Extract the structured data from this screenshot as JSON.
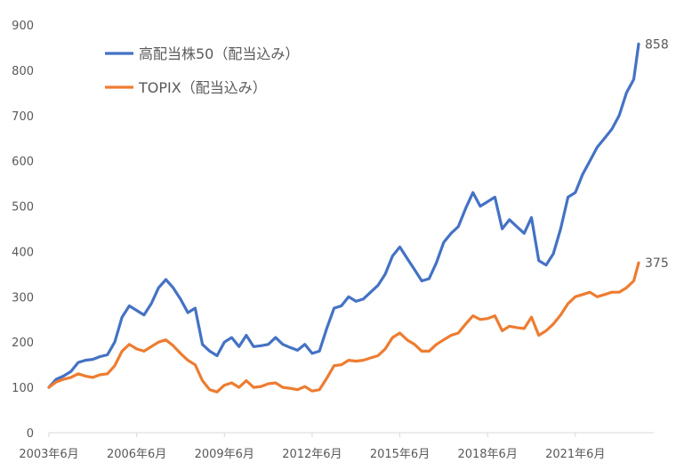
{
  "chart_data": {
    "type": "line",
    "ylim": [
      0,
      900
    ],
    "y_ticks": [
      "0",
      "100",
      "200",
      "300",
      "400",
      "500",
      "600",
      "700",
      "800",
      "900"
    ],
    "x_ticks": [
      "2003年6月",
      "2006年6月",
      "2009年6月",
      "2012年6月",
      "2015年6月",
      "2018年6月",
      "2021年6月"
    ],
    "x_range": [
      2003.417,
      2023.583
    ],
    "grid": false,
    "legend_position": "top-left",
    "series": [
      {
        "name": "高配当株50（配当込み）",
        "color": "#4472C4",
        "end_label": "858",
        "points": [
          [
            2003.417,
            100
          ],
          [
            2003.667,
            118
          ],
          [
            2003.917,
            125
          ],
          [
            2004.167,
            135
          ],
          [
            2004.417,
            155
          ],
          [
            2004.667,
            160
          ],
          [
            2004.917,
            162
          ],
          [
            2005.167,
            168
          ],
          [
            2005.417,
            172
          ],
          [
            2005.667,
            200
          ],
          [
            2005.917,
            255
          ],
          [
            2006.167,
            280
          ],
          [
            2006.417,
            270
          ],
          [
            2006.667,
            260
          ],
          [
            2006.917,
            285
          ],
          [
            2007.167,
            320
          ],
          [
            2007.417,
            338
          ],
          [
            2007.667,
            320
          ],
          [
            2007.917,
            295
          ],
          [
            2008.167,
            265
          ],
          [
            2008.417,
            275
          ],
          [
            2008.667,
            195
          ],
          [
            2008.917,
            180
          ],
          [
            2009.167,
            170
          ],
          [
            2009.417,
            200
          ],
          [
            2009.667,
            210
          ],
          [
            2009.917,
            190
          ],
          [
            2010.167,
            215
          ],
          [
            2010.417,
            190
          ],
          [
            2010.667,
            192
          ],
          [
            2010.917,
            195
          ],
          [
            2011.167,
            210
          ],
          [
            2011.417,
            195
          ],
          [
            2011.667,
            188
          ],
          [
            2011.917,
            182
          ],
          [
            2012.167,
            195
          ],
          [
            2012.417,
            175
          ],
          [
            2012.667,
            180
          ],
          [
            2012.917,
            230
          ],
          [
            2013.167,
            275
          ],
          [
            2013.417,
            280
          ],
          [
            2013.667,
            300
          ],
          [
            2013.917,
            290
          ],
          [
            2014.167,
            295
          ],
          [
            2014.417,
            310
          ],
          [
            2014.667,
            325
          ],
          [
            2014.917,
            350
          ],
          [
            2015.167,
            390
          ],
          [
            2015.417,
            410
          ],
          [
            2015.667,
            385
          ],
          [
            2015.917,
            360
          ],
          [
            2016.167,
            335
          ],
          [
            2016.417,
            340
          ],
          [
            2016.667,
            375
          ],
          [
            2016.917,
            420
          ],
          [
            2017.167,
            440
          ],
          [
            2017.417,
            455
          ],
          [
            2017.667,
            495
          ],
          [
            2017.917,
            530
          ],
          [
            2018.167,
            500
          ],
          [
            2018.417,
            510
          ],
          [
            2018.667,
            520
          ],
          [
            2018.917,
            450
          ],
          [
            2019.167,
            470
          ],
          [
            2019.417,
            455
          ],
          [
            2019.667,
            440
          ],
          [
            2019.917,
            475
          ],
          [
            2020.167,
            380
          ],
          [
            2020.417,
            370
          ],
          [
            2020.667,
            395
          ],
          [
            2020.917,
            450
          ],
          [
            2021.167,
            520
          ],
          [
            2021.417,
            530
          ],
          [
            2021.667,
            570
          ],
          [
            2021.917,
            600
          ],
          [
            2022.167,
            630
          ],
          [
            2022.417,
            650
          ],
          [
            2022.667,
            670
          ],
          [
            2022.917,
            700
          ],
          [
            2023.167,
            750
          ],
          [
            2023.417,
            780
          ],
          [
            2023.583,
            858
          ]
        ]
      },
      {
        "name": "TOPIX（配当込み）",
        "color": "#ED7D31",
        "end_label": "375",
        "points": [
          [
            2003.417,
            100
          ],
          [
            2003.667,
            112
          ],
          [
            2003.917,
            118
          ],
          [
            2004.167,
            122
          ],
          [
            2004.417,
            130
          ],
          [
            2004.667,
            125
          ],
          [
            2004.917,
            122
          ],
          [
            2005.167,
            128
          ],
          [
            2005.417,
            130
          ],
          [
            2005.667,
            148
          ],
          [
            2005.917,
            180
          ],
          [
            2006.167,
            195
          ],
          [
            2006.417,
            185
          ],
          [
            2006.667,
            180
          ],
          [
            2006.917,
            190
          ],
          [
            2007.167,
            200
          ],
          [
            2007.417,
            205
          ],
          [
            2007.667,
            192
          ],
          [
            2007.917,
            175
          ],
          [
            2008.167,
            160
          ],
          [
            2008.417,
            150
          ],
          [
            2008.667,
            115
          ],
          [
            2008.917,
            95
          ],
          [
            2009.167,
            90
          ],
          [
            2009.417,
            105
          ],
          [
            2009.667,
            110
          ],
          [
            2009.917,
            100
          ],
          [
            2010.167,
            115
          ],
          [
            2010.417,
            100
          ],
          [
            2010.667,
            102
          ],
          [
            2010.917,
            108
          ],
          [
            2011.167,
            110
          ],
          [
            2011.417,
            100
          ],
          [
            2011.667,
            98
          ],
          [
            2011.917,
            95
          ],
          [
            2012.167,
            102
          ],
          [
            2012.417,
            92
          ],
          [
            2012.667,
            95
          ],
          [
            2012.917,
            120
          ],
          [
            2013.167,
            148
          ],
          [
            2013.417,
            150
          ],
          [
            2013.667,
            160
          ],
          [
            2013.917,
            158
          ],
          [
            2014.167,
            160
          ],
          [
            2014.417,
            165
          ],
          [
            2014.667,
            170
          ],
          [
            2014.917,
            185
          ],
          [
            2015.167,
            210
          ],
          [
            2015.417,
            220
          ],
          [
            2015.667,
            205
          ],
          [
            2015.917,
            195
          ],
          [
            2016.167,
            180
          ],
          [
            2016.417,
            180
          ],
          [
            2016.667,
            195
          ],
          [
            2016.917,
            205
          ],
          [
            2017.167,
            215
          ],
          [
            2017.417,
            220
          ],
          [
            2017.667,
            240
          ],
          [
            2017.917,
            258
          ],
          [
            2018.167,
            250
          ],
          [
            2018.417,
            252
          ],
          [
            2018.667,
            258
          ],
          [
            2018.917,
            225
          ],
          [
            2019.167,
            235
          ],
          [
            2019.417,
            232
          ],
          [
            2019.667,
            230
          ],
          [
            2019.917,
            255
          ],
          [
            2020.167,
            215
          ],
          [
            2020.417,
            225
          ],
          [
            2020.667,
            240
          ],
          [
            2020.917,
            260
          ],
          [
            2021.167,
            285
          ],
          [
            2021.417,
            300
          ],
          [
            2021.667,
            305
          ],
          [
            2021.917,
            310
          ],
          [
            2022.167,
            300
          ],
          [
            2022.417,
            305
          ],
          [
            2022.667,
            310
          ],
          [
            2022.917,
            310
          ],
          [
            2023.167,
            320
          ],
          [
            2023.417,
            335
          ],
          [
            2023.583,
            375
          ]
        ]
      }
    ]
  }
}
